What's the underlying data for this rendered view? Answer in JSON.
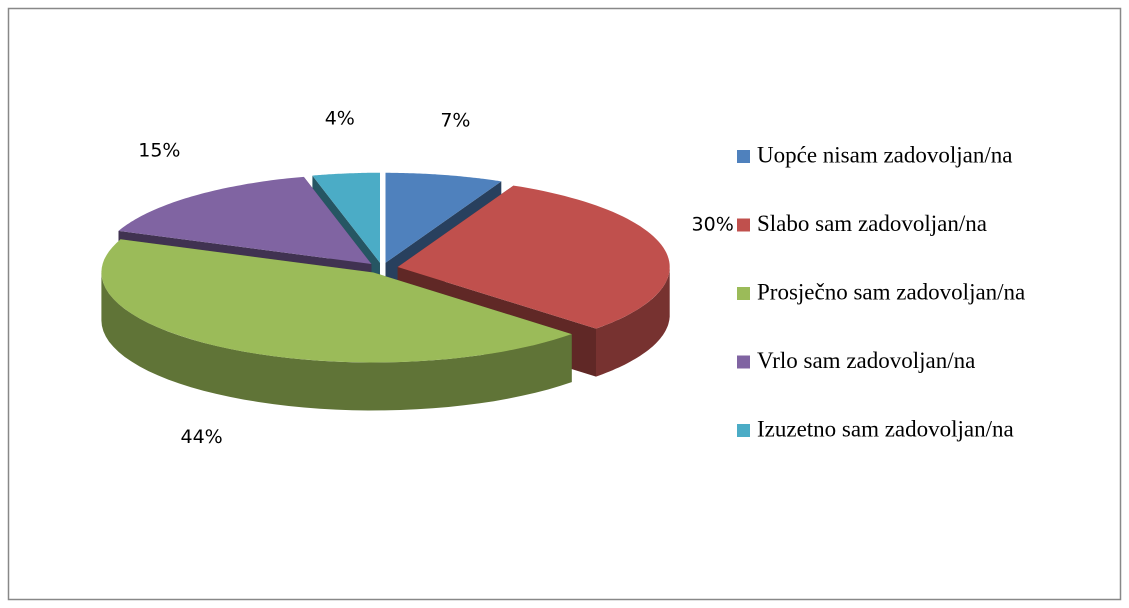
{
  "chart_data": {
    "type": "pie",
    "categories": [
      "Uopće nisam zadovoljan/na",
      "Slabo sam zadovoljan/na",
      "Prosječno sam zadovoljan/na",
      "Vrlo sam zadovoljan/na",
      "Izuzetno sam zadovoljan/na"
    ],
    "values": [
      7,
      30,
      44,
      15,
      4
    ],
    "value_labels": [
      "7%",
      "30%",
      "44%",
      "15%",
      "4%"
    ],
    "colors": [
      "#4f81bd",
      "#c0504d",
      "#9bbb59",
      "#8064a2",
      "#4bacc6"
    ],
    "legend": "right"
  }
}
